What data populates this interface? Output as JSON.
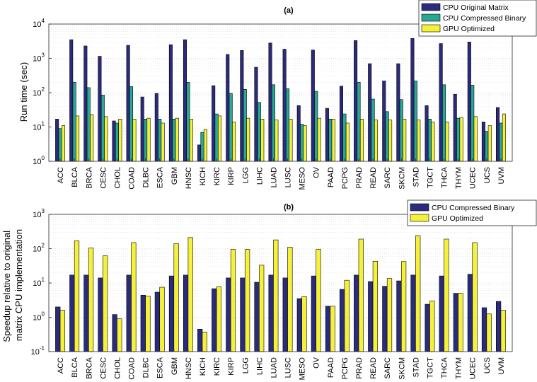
{
  "chart_data": [
    {
      "type": "bar",
      "title": "(a)",
      "ylabel": "Run time (sec)",
      "xlabel": "",
      "yscale": "log",
      "ylim": [
        1,
        10000
      ],
      "grid": true,
      "legend_position": "top-right-outside",
      "categories": [
        "ACC",
        "BLCA",
        "BRCA",
        "CESC",
        "CHOL",
        "COAD",
        "DLBC",
        "ESCA",
        "GBM",
        "HNSC",
        "KICH",
        "KIRC",
        "KIRP",
        "LGG",
        "LIHC",
        "LUAD",
        "LUSC",
        "MESO",
        "OV",
        "PAAD",
        "PCPG",
        "PRAD",
        "READ",
        "SARC",
        "SKCM",
        "STAD",
        "TGCT",
        "THCA",
        "THYM",
        "UCEC",
        "UCS",
        "UVM"
      ],
      "series": [
        {
          "name": "CPU Original Matrix",
          "color": "#2b2b7d",
          "values": [
            17,
            3500,
            2300,
            1150,
            15,
            2400,
            75,
            95,
            2500,
            3500,
            3,
            160,
            1300,
            1700,
            550,
            2800,
            1850,
            42,
            1750,
            35,
            155,
            3300,
            700,
            220,
            700,
            3800,
            42,
            2700,
            90,
            3000,
            14,
            37
          ]
        },
        {
          "name": "CPU Compressed Binary",
          "color": "#2aa795",
          "values": [
            9,
            200,
            140,
            85,
            13,
            150,
            17,
            17,
            17,
            200,
            7,
            24,
            95,
            125,
            52,
            170,
            130,
            12,
            110,
            17,
            24,
            200,
            65,
            28,
            63,
            220,
            17,
            170,
            18,
            165,
            7.5,
            13
          ]
        },
        {
          "name": "GPU Optimized",
          "color": "#f5f03a",
          "values": [
            11,
            21,
            23,
            20,
            17,
            17,
            18,
            13,
            18,
            17,
            8.5,
            21,
            14,
            18,
            17,
            16,
            17,
            11,
            18,
            17,
            13,
            17,
            16,
            16,
            17,
            16,
            14,
            14,
            19,
            20,
            11,
            24
          ]
        }
      ]
    },
    {
      "type": "bar",
      "title": "(b)",
      "ylabel": "Speedup relative to original matrix CPU implementation",
      "ylabel_lines": [
        "Speedup relative to original",
        "matrix CPU implementation"
      ],
      "xlabel": "",
      "yscale": "log",
      "ylim": [
        0.1,
        1000
      ],
      "grid": true,
      "legend_position": "top-right-outside",
      "categories": [
        "ACC",
        "BLCA",
        "BRCA",
        "CESC",
        "CHOL",
        "COAD",
        "DLBC",
        "ESCA",
        "GBM",
        "HNSC",
        "KICH",
        "KIRC",
        "KIRP",
        "LGG",
        "LIHC",
        "LUAD",
        "LUSC",
        "MESO",
        "OV",
        "PAAD",
        "PCPG",
        "PRAD",
        "READ",
        "SARC",
        "SKCM",
        "STAD",
        "TGCT",
        "THCA",
        "THYM",
        "UCEC",
        "UCS",
        "UVM"
      ],
      "series": [
        {
          "name": "CPU Compressed Binary",
          "color": "#2b2b7d",
          "values": [
            2.0,
            17,
            17,
            14,
            1.2,
            17,
            4.4,
            5.4,
            16,
            17,
            0.45,
            6.8,
            14,
            14,
            10.5,
            17,
            14,
            3.5,
            16,
            2.1,
            6.5,
            17,
            11,
            8,
            11.5,
            17,
            2.4,
            16,
            5,
            18,
            1.9,
            2.9
          ]
        },
        {
          "name": "GPU Optimized",
          "color": "#f5f03a",
          "values": [
            1.6,
            170,
            105,
            62,
            0.9,
            150,
            4.1,
            7.5,
            140,
            210,
            0.37,
            7.8,
            95,
            95,
            33,
            180,
            110,
            4.0,
            95,
            2.1,
            12,
            190,
            43,
            13.5,
            42,
            240,
            3.0,
            190,
            5,
            150,
            1.25,
            1.6
          ]
        }
      ]
    }
  ]
}
